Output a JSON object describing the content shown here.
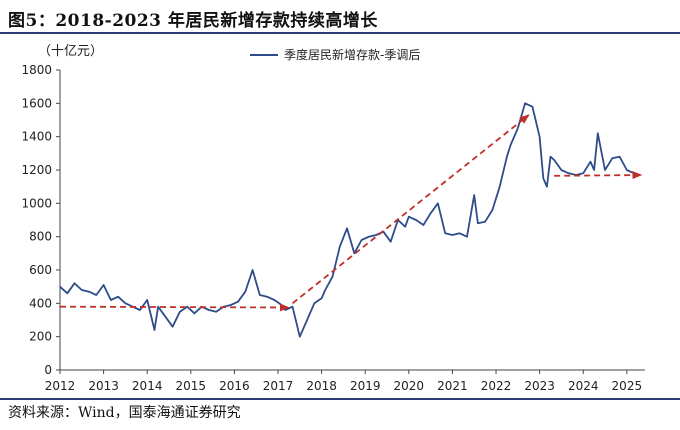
{
  "figure": {
    "title": "图5：2018-2023 年居民新增存款持续高增长",
    "unit": "（十亿元）",
    "source": "资料来源：Wind，国泰海通证券研究"
  },
  "colors": {
    "series_line": "#2e4c8a",
    "trend_arrow": "#c0302b",
    "rule": "#2a3d73"
  },
  "chart_data": {
    "type": "line",
    "title": "",
    "xlabel": "",
    "ylabel": "（十亿元）",
    "xlim": [
      "2012-01",
      "2025-06"
    ],
    "ylim": [
      0,
      1800
    ],
    "y_ticks": [
      0,
      200,
      400,
      600,
      800,
      1000,
      1200,
      1400,
      1600,
      1800
    ],
    "x_ticks": [
      "2012",
      "2013",
      "2014",
      "2015",
      "2016",
      "2017",
      "2018",
      "2019",
      "2020",
      "2021",
      "2022",
      "2023",
      "2024",
      "2025"
    ],
    "grid": false,
    "legend_position": "top-center",
    "series": [
      {
        "name": "季度居民新增存款-季调后",
        "x": [
          "2012-01",
          "2012-03",
          "2012-05",
          "2012-07",
          "2012-09",
          "2012-11",
          "2013-01",
          "2013-03",
          "2013-05",
          "2013-07",
          "2013-09",
          "2013-11",
          "2014-01",
          "2014-03",
          "2014-04",
          "2014-06",
          "2014-08",
          "2014-10",
          "2014-12",
          "2015-02",
          "2015-04",
          "2015-06",
          "2015-08",
          "2015-10",
          "2015-12",
          "2016-02",
          "2016-04",
          "2016-06",
          "2016-08",
          "2016-10",
          "2016-12",
          "2017-02",
          "2017-03",
          "2017-05",
          "2017-07",
          "2017-09",
          "2017-11",
          "2018-01",
          "2018-02",
          "2018-04",
          "2018-06",
          "2018-08",
          "2018-10",
          "2018-12",
          "2019-02",
          "2019-04",
          "2019-06",
          "2019-08",
          "2019-10",
          "2019-12",
          "2020-01",
          "2020-03",
          "2020-05",
          "2020-07",
          "2020-09",
          "2020-11",
          "2021-01",
          "2021-03",
          "2021-05",
          "2021-07",
          "2021-08",
          "2021-10",
          "2021-12",
          "2022-02",
          "2022-04",
          "2022-05",
          "2022-07",
          "2022-09",
          "2022-11",
          "2023-01",
          "2023-02",
          "2023-03",
          "2023-04",
          "2023-05",
          "2023-07",
          "2023-09",
          "2023-11",
          "2024-01",
          "2024-03",
          "2024-04",
          "2024-05",
          "2024-07",
          "2024-09",
          "2024-11",
          "2025-01",
          "2025-03"
        ],
        "y": [
          500,
          460,
          520,
          480,
          470,
          450,
          510,
          420,
          440,
          400,
          380,
          360,
          420,
          240,
          380,
          320,
          260,
          350,
          380,
          340,
          380,
          360,
          350,
          380,
          390,
          410,
          470,
          600,
          450,
          440,
          420,
          390,
          360,
          380,
          200,
          300,
          400,
          430,
          480,
          560,
          740,
          850,
          700,
          780,
          800,
          810,
          830,
          770,
          900,
          860,
          920,
          900,
          870,
          940,
          1000,
          820,
          810,
          820,
          800,
          1050,
          880,
          890,
          960,
          1100,
          1280,
          1350,
          1450,
          1600,
          1580,
          1400,
          1150,
          1100,
          1280,
          1260,
          1200,
          1180,
          1170,
          1180,
          1250,
          1200,
          1420,
          1200,
          1270,
          1280,
          1200,
          1180
        ]
      }
    ],
    "annotations": [
      {
        "type": "arrow",
        "from": {
          "x": "2012-01",
          "y": 380
        },
        "to": {
          "x": "2017-04",
          "y": 375
        }
      },
      {
        "type": "arrow",
        "from": {
          "x": "2017-05",
          "y": 400
        },
        "to": {
          "x": "2022-10",
          "y": 1530
        }
      },
      {
        "type": "arrow",
        "from": {
          "x": "2023-05",
          "y": 1165
        },
        "to": {
          "x": "2025-05",
          "y": 1170
        }
      }
    ]
  }
}
